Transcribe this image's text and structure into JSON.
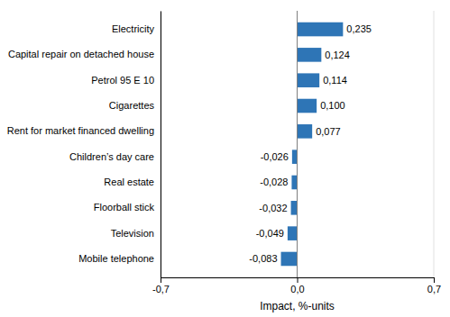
{
  "chart_data": {
    "type": "bar",
    "orientation": "horizontal",
    "categories": [
      "Mobile telephone",
      "Television",
      "Floorball stick",
      "Real estate",
      "Children’s day care",
      "Rent for market financed dwelling",
      "Cigarettes",
      "Petrol 95 E 10",
      "Capital repair on detached house",
      "Electricity"
    ],
    "values": [
      -0.083,
      -0.049,
      -0.032,
      -0.028,
      -0.026,
      0.077,
      0.1,
      0.114,
      0.124,
      0.235
    ],
    "value_labels": [
      "-0,083",
      "-0,049",
      "-0,032",
      "-0,028",
      "-0,026",
      "0,077",
      "0,100",
      "0,114",
      "0,124",
      "0,235"
    ],
    "data_labels": true,
    "color": "#2E75B6",
    "xlabel": "Impact, %-units",
    "xlim": [
      -0.7,
      0.7
    ],
    "xticks": [
      {
        "value": -0.7,
        "label": "-0,7"
      },
      {
        "value": 0.0,
        "label": "0,0"
      },
      {
        "value": 0.7,
        "label": "0,7"
      }
    ],
    "grid": true
  }
}
